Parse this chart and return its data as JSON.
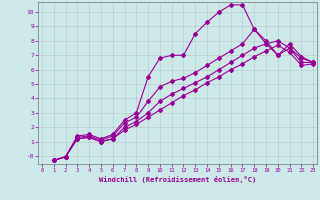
{
  "xlabel": "Windchill (Refroidissement éolien,°C)",
  "bg_color": "#cce8e8",
  "line_color": "#990099",
  "grid_color": "#b0b0b0",
  "xlim": [
    -0.3,
    23.3
  ],
  "ylim": [
    -0.55,
    10.7
  ],
  "xticks": [
    0,
    1,
    2,
    3,
    4,
    5,
    6,
    7,
    8,
    9,
    10,
    11,
    12,
    13,
    14,
    15,
    16,
    17,
    18,
    19,
    20,
    21,
    22,
    23
  ],
  "yticks": [
    0,
    1,
    2,
    3,
    4,
    5,
    6,
    7,
    8,
    9,
    10
  ],
  "ytick_labels": [
    "-0",
    "1",
    "2",
    "3",
    "4",
    "5",
    "6",
    "7",
    "8",
    "9",
    "10"
  ],
  "lines": [
    {
      "x": [
        1,
        2,
        3,
        4,
        5,
        6,
        7,
        8,
        9,
        10,
        11,
        12,
        13,
        14,
        15,
        16,
        17,
        18,
        19,
        20,
        21,
        22,
        23
      ],
      "y": [
        -0.3,
        -0.05,
        1.4,
        1.5,
        1.2,
        1.5,
        2.5,
        3.0,
        5.5,
        6.8,
        7.0,
        7.0,
        8.5,
        9.3,
        10.0,
        10.5,
        10.5,
        8.8,
        7.8,
        7.0,
        7.5,
        6.8,
        6.5
      ]
    },
    {
      "x": [
        1,
        2,
        3,
        4,
        5,
        6,
        7,
        8,
        9,
        10,
        11,
        12,
        13,
        14,
        15,
        16,
        17,
        18,
        19,
        20,
        21,
        22,
        23
      ],
      "y": [
        -0.3,
        -0.05,
        1.3,
        1.4,
        1.1,
        1.4,
        2.3,
        2.7,
        3.8,
        4.8,
        5.2,
        5.4,
        5.8,
        6.3,
        6.8,
        7.3,
        7.8,
        8.8,
        8.0,
        7.0,
        7.8,
        6.9,
        6.5
      ]
    },
    {
      "x": [
        1,
        2,
        3,
        4,
        5,
        6,
        7,
        8,
        9,
        10,
        11,
        12,
        13,
        14,
        15,
        16,
        17,
        18,
        19,
        20,
        21,
        22,
        23
      ],
      "y": [
        -0.3,
        -0.05,
        1.2,
        1.3,
        1.0,
        1.2,
        2.0,
        2.4,
        3.0,
        3.8,
        4.3,
        4.7,
        5.1,
        5.5,
        6.0,
        6.5,
        7.0,
        7.5,
        7.8,
        8.0,
        7.5,
        6.5,
        6.5
      ]
    },
    {
      "x": [
        1,
        2,
        3,
        4,
        5,
        6,
        7,
        8,
        9,
        10,
        11,
        12,
        13,
        14,
        15,
        16,
        17,
        18,
        19,
        20,
        21,
        22,
        23
      ],
      "y": [
        -0.3,
        -0.05,
        1.2,
        1.3,
        1.0,
        1.2,
        1.8,
        2.2,
        2.7,
        3.2,
        3.7,
        4.2,
        4.6,
        5.1,
        5.5,
        6.0,
        6.4,
        6.9,
        7.3,
        7.7,
        7.2,
        6.3,
        6.4
      ]
    }
  ]
}
